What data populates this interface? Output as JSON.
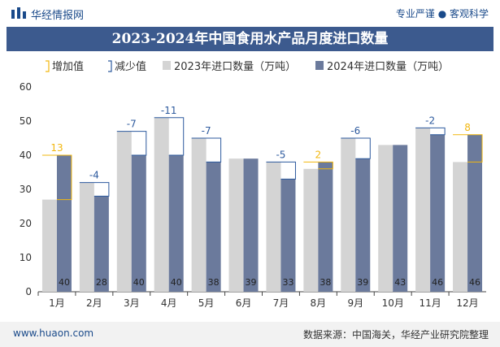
{
  "header": {
    "brand": "华经情报网",
    "tagline": "专业严谨 ● 客观科学"
  },
  "title": "2023-2024年中国食用水产品月度进口数量",
  "legend": {
    "increase": "增加值",
    "decrease": "减少值",
    "series_2023": "2023年进口数量（万吨）",
    "series_2024": "2024年进口数量（万吨）"
  },
  "chart_data": {
    "type": "bar",
    "categories": [
      "1月",
      "2月",
      "3月",
      "4月",
      "5月",
      "6月",
      "7月",
      "8月",
      "9月",
      "10月",
      "11月",
      "12月"
    ],
    "series": [
      {
        "name": "2023年进口数量（万吨）",
        "values": [
          27,
          32,
          47,
          51,
          45,
          39,
          38,
          36,
          45,
          43,
          48,
          38
        ]
      },
      {
        "name": "2024年进口数量（万吨）",
        "values": [
          40,
          28,
          40,
          40,
          38,
          39,
          33,
          38,
          39,
          43,
          46,
          46
        ]
      }
    ],
    "changes": [
      "13",
      "-4",
      "-7",
      "-11",
      "-7",
      "",
      "-5",
      "2",
      "-6",
      "",
      "-2",
      "8"
    ],
    "ylim": [
      0,
      60
    ],
    "yticks": [
      0,
      10,
      20,
      30,
      40,
      50,
      60
    ],
    "grid": false,
    "legend_position": "top",
    "colors": {
      "bar_2023": "#d4d4d4",
      "bar_2024": "#6b7a9c",
      "increase": "#f2b70f",
      "decrease": "#2d5a9e"
    }
  },
  "footer": {
    "website": "www.huaon.com",
    "source": "数据来源：中国海关，华经产业研究院整理"
  }
}
